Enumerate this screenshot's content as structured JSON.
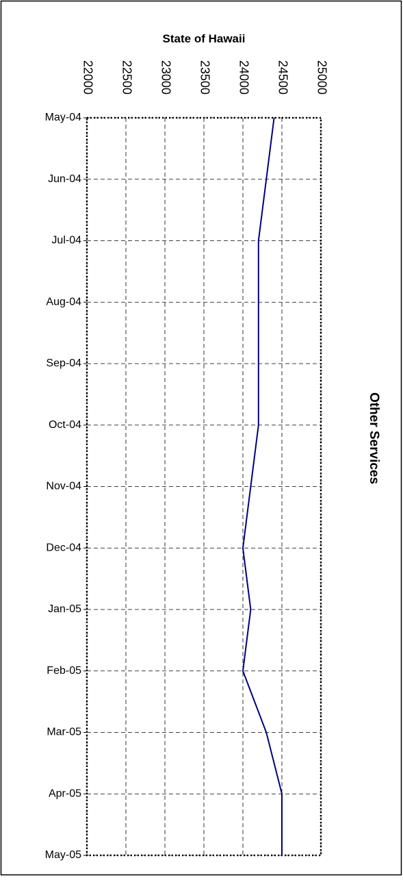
{
  "chart_data": {
    "type": "line",
    "orientation": "horizontal",
    "title": "State of Hawaii",
    "axis_label": "Other Services",
    "categories": [
      "May-04",
      "Jun-04",
      "Jul-04",
      "Aug-04",
      "Sep-04",
      "Oct-04",
      "Nov-04",
      "Dec-04",
      "Jan-05",
      "Feb-05",
      "Mar-05",
      "Apr-05",
      "May-05"
    ],
    "values": [
      24400,
      24300,
      24200,
      24200,
      24200,
      24200,
      24100,
      24000,
      24100,
      24000,
      24300,
      24500,
      24500
    ],
    "color": "#000080",
    "xlim": [
      22000,
      25000
    ],
    "xticks": [
      22000,
      22500,
      23000,
      23500,
      24000,
      24500,
      25000
    ],
    "grid": true
  }
}
